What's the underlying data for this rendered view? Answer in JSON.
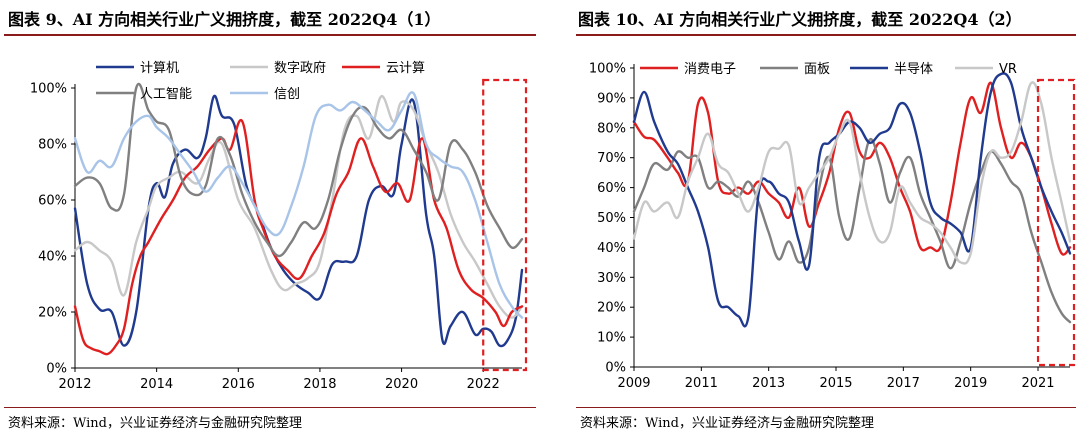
{
  "charts": [
    {
      "title": "图表 9、AI 方向相关行业广义拥挤度，截至 2022Q4（1）",
      "source": "资料来源：Wind，兴业证券经济与金融研究院整理",
      "chart_data": {
        "type": "line",
        "title": "图表 9、AI 方向相关行业广义拥挤度，截至 2022Q4（1）",
        "xlabel": "",
        "ylabel": "",
        "xlim": [
          2012,
          2022.95
        ],
        "ylim": [
          0,
          100
        ],
        "x_ticks": [
          2012,
          2014,
          2016,
          2018,
          2020,
          2022
        ],
        "y_ticks": [
          0,
          20,
          40,
          60,
          80,
          100
        ],
        "y_tick_labels": [
          "0%",
          "20%",
          "40%",
          "60%",
          "80%",
          "100%"
        ],
        "highlight_range": [
          2022.0,
          2022.95
        ],
        "series": [
          {
            "name": "计算机",
            "color": "#1f3a8f",
            "x": [
              2012,
              2012.3,
              2012.6,
              2012.9,
              2013.2,
              2013.5,
              2013.8,
              2014.0,
              2014.2,
              2014.4,
              2014.7,
              2015.0,
              2015.2,
              2015.4,
              2015.6,
              2015.9,
              2016.2,
              2016.5,
              2016.8,
              2017.1,
              2017.4,
              2017.7,
              2018.0,
              2018.3,
              2018.6,
              2018.9,
              2019.2,
              2019.5,
              2019.8,
              2020.0,
              2020.3,
              2020.6,
              2020.8,
              2021.0,
              2021.2,
              2021.5,
              2021.8,
              2022.0,
              2022.2,
              2022.4,
              2022.6,
              2022.8,
              2022.95
            ],
            "values": [
              57,
              30,
              21,
              20,
              8,
              20,
              57,
              66,
              61,
              73,
              78,
              75,
              82,
              97,
              90,
              87,
              65,
              55,
              43,
              35,
              30,
              27,
              25,
              37,
              38,
              40,
              60,
              65,
              62,
              80,
              95,
              55,
              40,
              10,
              15,
              20,
              12,
              14,
              13,
              8,
              10,
              18,
              35
            ]
          },
          {
            "name": "数字政府",
            "color": "#c8c8c8",
            "x": [
              2012,
              2012.3,
              2012.6,
              2012.9,
              2013.2,
              2013.5,
              2013.8,
              2014.0,
              2014.3,
              2014.6,
              2015.0,
              2015.3,
              2015.6,
              2016.0,
              2016.4,
              2016.8,
              2017.1,
              2017.4,
              2017.7,
              2018.0,
              2018.3,
              2018.6,
              2018.9,
              2019.2,
              2019.5,
              2019.8,
              2020.0,
              2020.3,
              2020.6,
              2020.9,
              2021.2,
              2021.5,
              2021.8,
              2022.1,
              2022.4,
              2022.7,
              2022.95
            ],
            "values": [
              42,
              45,
              42,
              38,
              26,
              45,
              57,
              65,
              68,
              70,
              66,
              75,
              80,
              60,
              50,
              35,
              28,
              30,
              32,
              38,
              60,
              85,
              90,
              82,
              97,
              88,
              95,
              92,
              80,
              70,
              55,
              45,
              38,
              30,
              22,
              18,
              22
            ]
          },
          {
            "name": "云计算",
            "color": "#e02020",
            "x": [
              2012,
              2012.2,
              2012.4,
              2012.6,
              2012.8,
              2013.0,
              2013.2,
              2013.4,
              2013.6,
              2013.8,
              2014.1,
              2014.4,
              2014.7,
              2015.0,
              2015.3,
              2015.6,
              2015.8,
              2016.1,
              2016.4,
              2016.6,
              2016.9,
              2017.2,
              2017.5,
              2017.8,
              2018.1,
              2018.4,
              2018.7,
              2019.0,
              2019.3,
              2019.6,
              2019.9,
              2020.2,
              2020.5,
              2020.8,
              2021.1,
              2021.4,
              2021.7,
              2022.0,
              2022.3,
              2022.5,
              2022.7,
              2022.95
            ],
            "values": [
              22,
              10,
              7,
              6,
              5,
              8,
              14,
              30,
              40,
              45,
              53,
              60,
              68,
              72,
              78,
              82,
              78,
              88,
              60,
              50,
              40,
              35,
              32,
              40,
              48,
              62,
              70,
              82,
              72,
              63,
              66,
              60,
              82,
              60,
              50,
              35,
              28,
              25,
              20,
              15,
              20,
              22
            ]
          },
          {
            "name": "人工智能",
            "color": "#808080",
            "x": [
              2012,
              2012.3,
              2012.6,
              2012.9,
              2013.2,
              2013.5,
              2013.8,
              2014.0,
              2014.3,
              2014.6,
              2014.9,
              2015.2,
              2015.5,
              2015.8,
              2016.1,
              2016.4,
              2016.7,
              2017.0,
              2017.3,
              2017.6,
              2017.9,
              2018.2,
              2018.5,
              2018.8,
              2019.1,
              2019.4,
              2019.7,
              2020.0,
              2020.3,
              2020.6,
              2020.9,
              2021.2,
              2021.5,
              2021.8,
              2022.1,
              2022.4,
              2022.7,
              2022.95
            ],
            "values": [
              65,
              68,
              66,
              57,
              62,
              100,
              92,
              88,
              85,
              68,
              62,
              65,
              82,
              76,
              62,
              52,
              45,
              40,
              45,
              52,
              50,
              60,
              78,
              90,
              93,
              86,
              82,
              85,
              78,
              70,
              60,
              80,
              78,
              70,
              58,
              50,
              43,
              46
            ]
          },
          {
            "name": "信创",
            "color": "#a8c4e8",
            "x": [
              2012,
              2012.3,
              2012.6,
              2012.9,
              2013.2,
              2013.5,
              2013.8,
              2014.0,
              2014.3,
              2014.6,
              2014.9,
              2015.2,
              2015.5,
              2015.8,
              2016.1,
              2016.4,
              2016.7,
              2017.0,
              2017.3,
              2017.6,
              2017.9,
              2018.2,
              2018.5,
              2018.8,
              2019.1,
              2019.4,
              2019.7,
              2020.0,
              2020.3,
              2020.6,
              2020.9,
              2021.2,
              2021.5,
              2021.8,
              2022.1,
              2022.4,
              2022.7,
              2022.95
            ],
            "values": [
              82,
              70,
              74,
              72,
              82,
              88,
              90,
              86,
              82,
              76,
              70,
              63,
              68,
              72,
              66,
              58,
              50,
              48,
              58,
              72,
              90,
              94,
              92,
              95,
              92,
              88,
              85,
              92,
              98,
              80,
              75,
              72,
              70,
              60,
              45,
              30,
              22,
              18
            ]
          }
        ]
      }
    },
    {
      "title": "图表 10、AI 方向相关行业广义拥挤度，截至 2022Q4（2）",
      "source": "资料来源：Wind，兴业证券经济与金融研究院整理",
      "chart_data": {
        "type": "line",
        "title": "图表 10、AI 方向相关行业广义拥挤度，截至 2022Q4（2）",
        "xlabel": "",
        "ylabel": "",
        "xlim": [
          2009,
          2021.95
        ],
        "ylim": [
          0,
          100
        ],
        "x_ticks": [
          2009,
          2011,
          2013,
          2015,
          2017,
          2019,
          2021
        ],
        "y_ticks": [
          0,
          10,
          20,
          30,
          40,
          50,
          60,
          70,
          80,
          90,
          100
        ],
        "y_tick_labels": [
          "0%",
          "10%",
          "20%",
          "30%",
          "40%",
          "50%",
          "60%",
          "70%",
          "80%",
          "90%",
          "100%"
        ],
        "highlight_range": [
          2021.0,
          2021.95
        ],
        "series": [
          {
            "name": "消费电子",
            "color": "#e02020",
            "x": [
              2009,
              2009.3,
              2009.6,
              2010.0,
              2010.3,
              2010.6,
              2010.9,
              2011.2,
              2011.5,
              2011.8,
              2012.1,
              2012.4,
              2012.7,
              2013.0,
              2013.3,
              2013.6,
              2013.9,
              2014.2,
              2014.5,
              2014.8,
              2015.1,
              2015.4,
              2015.7,
              2016.0,
              2016.3,
              2016.6,
              2016.9,
              2017.2,
              2017.5,
              2017.8,
              2018.1,
              2018.4,
              2018.7,
              2019.0,
              2019.3,
              2019.6,
              2019.9,
              2020.2,
              2020.5,
              2020.8,
              2021.1,
              2021.4,
              2021.7,
              2021.95
            ],
            "values": [
              82,
              77,
              76,
              70,
              65,
              62,
              88,
              85,
              62,
              58,
              60,
              58,
              62,
              58,
              55,
              50,
              60,
              47,
              55,
              65,
              80,
              85,
              72,
              70,
              75,
              70,
              60,
              52,
              40,
              40,
              40,
              55,
              75,
              90,
              85,
              95,
              80,
              70,
              75,
              70,
              60,
              48,
              38,
              40
            ]
          },
          {
            "name": "面板",
            "color": "#808080",
            "x": [
              2009,
              2009.3,
              2009.6,
              2010.0,
              2010.3,
              2010.6,
              2010.9,
              2011.2,
              2011.5,
              2011.8,
              2012.1,
              2012.4,
              2012.7,
              2013.0,
              2013.3,
              2013.6,
              2013.9,
              2014.2,
              2014.5,
              2014.8,
              2015.1,
              2015.4,
              2015.7,
              2016.0,
              2016.3,
              2016.6,
              2016.9,
              2017.2,
              2017.5,
              2017.8,
              2018.1,
              2018.4,
              2018.7,
              2019.0,
              2019.3,
              2019.6,
              2019.9,
              2020.2,
              2020.5,
              2020.8,
              2021.1,
              2021.4,
              2021.7,
              2021.95
            ],
            "values": [
              52,
              60,
              68,
              66,
              72,
              70,
              70,
              60,
              62,
              60,
              57,
              62,
              55,
              45,
              36,
              42,
              35,
              40,
              60,
              70,
              50,
              43,
              60,
              76,
              68,
              55,
              65,
              70,
              58,
              50,
              42,
              33,
              42,
              55,
              65,
              72,
              68,
              62,
              58,
              45,
              35,
              25,
              18,
              15
            ]
          },
          {
            "name": "半导体",
            "color": "#1f3a8f",
            "x": [
              2009,
              2009.3,
              2009.6,
              2010.0,
              2010.3,
              2010.6,
              2010.9,
              2011.2,
              2011.5,
              2011.8,
              2012.1,
              2012.4,
              2012.7,
              2013.0,
              2013.3,
              2013.6,
              2013.9,
              2014.2,
              2014.5,
              2014.8,
              2015.1,
              2015.4,
              2015.7,
              2016.0,
              2016.3,
              2016.6,
              2016.9,
              2017.2,
              2017.5,
              2017.8,
              2018.1,
              2018.4,
              2018.7,
              2019.0,
              2019.3,
              2019.6,
              2019.9,
              2020.2,
              2020.5,
              2020.8,
              2021.1,
              2021.4,
              2021.7,
              2021.95
            ],
            "values": [
              82,
              92,
              82,
              72,
              68,
              60,
              52,
              40,
              22,
              20,
              17,
              17,
              58,
              62,
              58,
              55,
              42,
              34,
              70,
              75,
              78,
              82,
              80,
              75,
              78,
              80,
              88,
              85,
              72,
              55,
              50,
              48,
              45,
              40,
              70,
              92,
              98,
              95,
              80,
              70,
              60,
              52,
              45,
              38
            ]
          },
          {
            "name": "VR",
            "color": "#c8c8c8",
            "x": [
              2009,
              2009.3,
              2009.6,
              2010.0,
              2010.3,
              2010.6,
              2010.9,
              2011.2,
              2011.5,
              2011.8,
              2012.1,
              2012.4,
              2012.7,
              2013.0,
              2013.3,
              2013.6,
              2013.9,
              2014.2,
              2014.5,
              2014.8,
              2015.1,
              2015.4,
              2015.7,
              2016.0,
              2016.3,
              2016.6,
              2016.9,
              2017.2,
              2017.5,
              2017.8,
              2018.1,
              2018.4,
              2018.7,
              2019.0,
              2019.3,
              2019.6,
              2019.9,
              2020.2,
              2020.5,
              2020.8,
              2021.1,
              2021.4,
              2021.7,
              2021.95
            ],
            "values": [
              43,
              55,
              52,
              55,
              50,
              62,
              70,
              78,
              68,
              65,
              58,
              52,
              60,
              72,
              73,
              74,
              55,
              60,
              65,
              70,
              78,
              82,
              65,
              50,
              42,
              45,
              60,
              55,
              50,
              48,
              45,
              40,
              35,
              38,
              60,
              72,
              70,
              72,
              82,
              95,
              88,
              70,
              55,
              42
            ]
          }
        ]
      }
    }
  ]
}
